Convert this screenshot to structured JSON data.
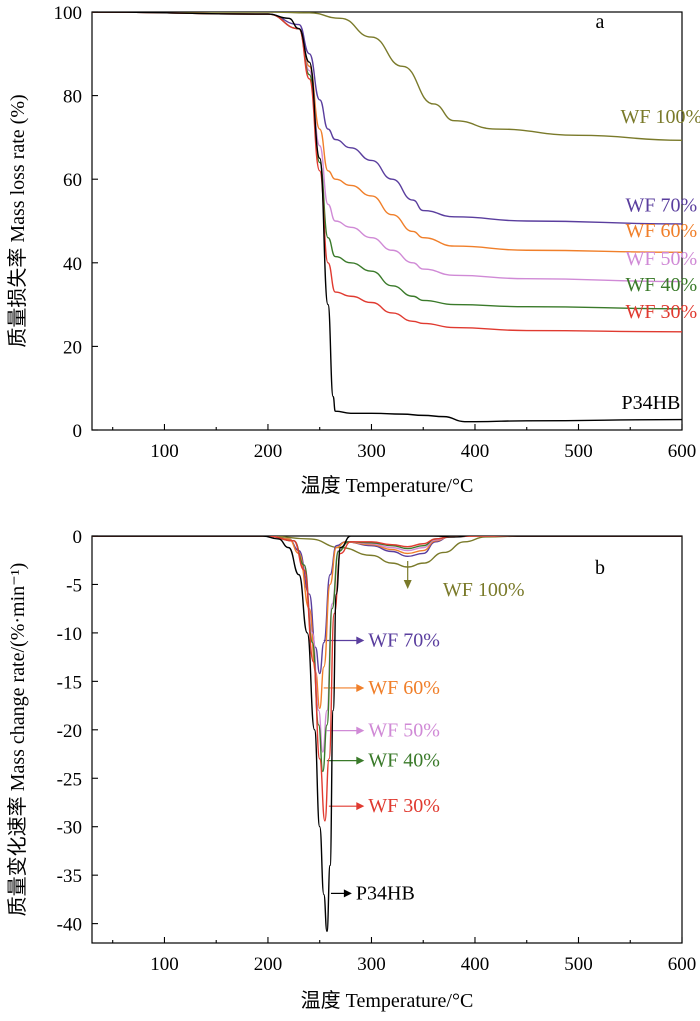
{
  "chart_data": [
    {
      "panel": "a",
      "type": "line",
      "panel_label": "a",
      "xlabel": "温度  Temperature/°C",
      "ylabel": "质量损失率  Mass loss rate (%)",
      "xlim": [
        30,
        600
      ],
      "ylim": [
        0,
        100
      ],
      "xticks": [
        100,
        200,
        300,
        400,
        500,
        600
      ],
      "yticks": [
        0,
        20,
        40,
        60,
        80,
        100
      ],
      "series": [
        {
          "name": "WF 100%",
          "color": "#7a7a2a",
          "label_x": 580,
          "label_y": 73.5,
          "x": [
            30,
            200,
            240,
            270,
            300,
            330,
            360,
            380,
            420,
            500,
            600
          ],
          "y": [
            100,
            100,
            99.8,
            98.5,
            94,
            87,
            78,
            74,
            72,
            70.5,
            69.3
          ]
        },
        {
          "name": "WF 70%",
          "color": "#5a3e9e",
          "label_x": 580,
          "label_y": 52.3,
          "x": [
            30,
            200,
            230,
            240,
            250,
            258,
            265,
            280,
            300,
            320,
            340,
            350,
            380,
            450,
            600
          ],
          "y": [
            100,
            99.5,
            97,
            90,
            79,
            72,
            69.5,
            67.5,
            64.5,
            60,
            55,
            52.5,
            51,
            50,
            49.3
          ]
        },
        {
          "name": "WF 60%",
          "color": "#f07f2a",
          "label_x": 580,
          "label_y": 46.2,
          "x": [
            30,
            200,
            230,
            240,
            250,
            258,
            265,
            280,
            300,
            320,
            340,
            350,
            380,
            450,
            600
          ],
          "y": [
            100,
            99.5,
            96,
            87,
            72,
            62,
            60,
            58.5,
            56,
            51.5,
            47.5,
            46,
            44,
            43,
            42.5
          ]
        },
        {
          "name": "WF 50%",
          "color": "#d08ad6",
          "label_x": 580,
          "label_y": 39.5,
          "x": [
            30,
            200,
            230,
            240,
            250,
            258,
            265,
            280,
            300,
            320,
            340,
            350,
            380,
            450,
            600
          ],
          "y": [
            100,
            99.5,
            96,
            86,
            68,
            54,
            50,
            48.5,
            46,
            43,
            40,
            38.5,
            37,
            36.2,
            35.5
          ]
        },
        {
          "name": "WF 40%",
          "color": "#3a7a2a",
          "label_x": 580,
          "label_y": 33.2,
          "x": [
            30,
            200,
            230,
            240,
            250,
            258,
            265,
            280,
            300,
            320,
            340,
            350,
            380,
            450,
            600
          ],
          "y": [
            100,
            99.5,
            96,
            85,
            64,
            46,
            41.5,
            40,
            38,
            34.5,
            32,
            31,
            30,
            29.5,
            29
          ]
        },
        {
          "name": "WF 30%",
          "color": "#e03a30",
          "label_x": 580,
          "label_y": 26.8,
          "x": [
            30,
            200,
            230,
            240,
            250,
            258,
            265,
            280,
            300,
            320,
            340,
            350,
            380,
            450,
            600
          ],
          "y": [
            100,
            99.5,
            96,
            84,
            62,
            40,
            33,
            32,
            30.5,
            28,
            26,
            25.5,
            24.5,
            23.8,
            23.5
          ]
        },
        {
          "name": "P34HB",
          "color": "#000000",
          "label_x": 570,
          "label_y": 5.0,
          "x": [
            30,
            200,
            220,
            230,
            240,
            250,
            258,
            263,
            265,
            280,
            300,
            330,
            350,
            370,
            390,
            400,
            450,
            600
          ],
          "y": [
            100,
            99.5,
            98.5,
            96,
            88,
            65,
            30,
            8,
            4.5,
            4,
            4,
            3.8,
            3.5,
            3.2,
            2,
            2,
            2.2,
            2.5
          ]
        }
      ]
    },
    {
      "panel": "b",
      "type": "line",
      "panel_label": "b",
      "xlabel": "温度  Temperature/°C",
      "ylabel": "质量变化速率  Mass change rate/(%·min⁻¹)",
      "xlim": [
        30,
        600
      ],
      "ylim": [
        -42,
        0
      ],
      "xticks": [
        100,
        200,
        300,
        400,
        500,
        600
      ],
      "yticks": [
        0,
        -5,
        -10,
        -15,
        -20,
        -25,
        -30,
        -35,
        -40
      ],
      "series": [
        {
          "name": "WF 100%",
          "color": "#7a7a2a",
          "peak_x": 335,
          "peak_y": -3.2,
          "label_x": 365,
          "label_y": -6.2,
          "arrow": "down",
          "x": [
            30,
            200,
            240,
            270,
            300,
            320,
            335,
            350,
            370,
            390,
            410,
            450,
            600
          ],
          "y": [
            0,
            0,
            -0.3,
            -1.2,
            -2.0,
            -2.8,
            -3.2,
            -2.8,
            -1.7,
            -0.6,
            -0.1,
            0,
            0
          ]
        },
        {
          "name": "WF 70%",
          "color": "#5a3e9e",
          "peak_x": 250,
          "peak_y": -14.2,
          "label_x": 295,
          "label_y": -11.4,
          "arrow": "right",
          "x": [
            30,
            200,
            220,
            230,
            240,
            246,
            250,
            254,
            260,
            266,
            275,
            300,
            320,
            335,
            350,
            362,
            375,
            400,
            450,
            600
          ],
          "y": [
            0,
            0,
            -0.3,
            -1.5,
            -6,
            -11.5,
            -14.2,
            -11,
            -4,
            -1,
            -0.6,
            -1,
            -1.6,
            -2.1,
            -1.8,
            -0.6,
            -0.1,
            0,
            0,
            0
          ]
        },
        {
          "name": "WF 60%",
          "color": "#f07f2a",
          "peak_x": 250,
          "peak_y": -17.8,
          "label_x": 295,
          "label_y": -16.3,
          "arrow": "right",
          "x": [
            30,
            200,
            220,
            230,
            240,
            246,
            250,
            254,
            260,
            266,
            275,
            300,
            320,
            335,
            350,
            362,
            375,
            400,
            450,
            600
          ],
          "y": [
            0,
            0,
            -0.3,
            -1.8,
            -7.5,
            -14,
            -17.8,
            -13.5,
            -5,
            -1.2,
            -0.6,
            -0.9,
            -1.4,
            -1.8,
            -1.5,
            -0.5,
            -0.1,
            0,
            0,
            0
          ]
        },
        {
          "name": "WF 50%",
          "color": "#d08ad6",
          "peak_x": 253,
          "peak_y": -22.3,
          "label_x": 295,
          "label_y": -20.7,
          "arrow": "right",
          "x": [
            30,
            200,
            225,
            235,
            243,
            249,
            253,
            257,
            262,
            268,
            278,
            300,
            320,
            335,
            350,
            362,
            375,
            400,
            450,
            600
          ],
          "y": [
            0,
            0,
            -0.5,
            -3,
            -10,
            -18,
            -22.3,
            -18,
            -7,
            -1.5,
            -0.6,
            -0.8,
            -1.2,
            -1.5,
            -1.2,
            -0.4,
            -0.1,
            0,
            0,
            0
          ]
        },
        {
          "name": "WF 40%",
          "color": "#3a7a2a",
          "peak_x": 253,
          "peak_y": -24.3,
          "label_x": 295,
          "label_y": -23.8,
          "arrow": "right",
          "x": [
            30,
            200,
            225,
            235,
            243,
            249,
            253,
            257,
            262,
            268,
            278,
            300,
            320,
            335,
            350,
            362,
            375,
            400,
            450,
            600
          ],
          "y": [
            0,
            0,
            -0.5,
            -3,
            -11,
            -19.5,
            -24.3,
            -19.5,
            -7.5,
            -1.6,
            -0.6,
            -0.7,
            -1.0,
            -1.3,
            -1.0,
            -0.3,
            -0.1,
            0,
            0,
            0
          ]
        },
        {
          "name": "WF 30%",
          "color": "#e03a30",
          "peak_x": 255,
          "peak_y": -29.4,
          "label_x": 295,
          "label_y": -28.5,
          "arrow": "right",
          "x": [
            30,
            200,
            225,
            235,
            244,
            250,
            255,
            259,
            264,
            270,
            280,
            300,
            320,
            335,
            350,
            362,
            375,
            400,
            450,
            600
          ],
          "y": [
            0,
            0,
            -0.5,
            -3.5,
            -13,
            -23,
            -29.4,
            -23,
            -8,
            -1.8,
            -0.6,
            -0.6,
            -0.9,
            -1.1,
            -0.8,
            -0.3,
            -0.1,
            0,
            0,
            0
          ]
        },
        {
          "name": "P34HB",
          "color": "#000000",
          "peak_x": 257,
          "peak_y": -40.8,
          "label_x": 283,
          "label_y": -37.5,
          "arrow": "right",
          "x": [
            30,
            195,
            210,
            220,
            230,
            238,
            245,
            250,
            254,
            257,
            260,
            263,
            266,
            270,
            280,
            300,
            360,
            380,
            400,
            450,
            600
          ],
          "y": [
            0,
            0,
            -0.3,
            -1.2,
            -4,
            -10,
            -20,
            -30,
            -37,
            -40.8,
            -34,
            -18,
            -6,
            -1.2,
            0,
            0,
            0,
            -0.1,
            0.1,
            0,
            0
          ]
        }
      ]
    }
  ]
}
